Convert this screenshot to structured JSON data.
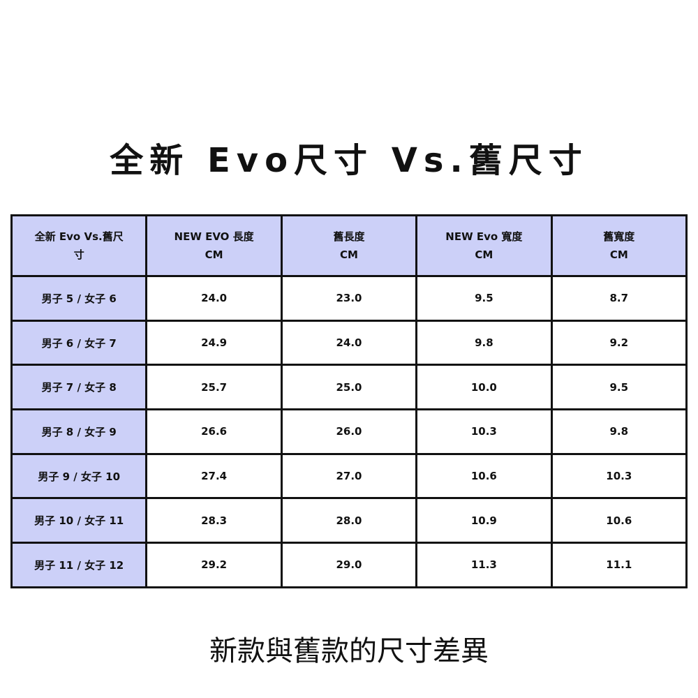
{
  "title": "全新 Evo尺寸 Vs.舊尺寸",
  "colors": {
    "header_fill": "#ccd0f8",
    "border": "#111111"
  },
  "table": {
    "headers": [
      {
        "line1": "全新 Evo Vs.舊尺",
        "line2": "寸"
      },
      {
        "line1": "NEW EVO 長度",
        "line2": "CM"
      },
      {
        "line1": "舊長度",
        "line2": "CM"
      },
      {
        "line1": "NEW Evo 寬度",
        "line2": "CM"
      },
      {
        "line1": "舊寬度",
        "line2": "CM"
      }
    ],
    "rows": [
      [
        "男子 5 / 女子 6",
        "24.0",
        "23.0",
        "9.5",
        "8.7"
      ],
      [
        "男子 6 / 女子 7",
        "24.9",
        "24.0",
        "9.8",
        "9.2"
      ],
      [
        "男子 7 / 女子 8",
        "25.7",
        "25.0",
        "10.0",
        "9.5"
      ],
      [
        "男子 8 / 女子 9",
        "26.6",
        "26.0",
        "10.3",
        "9.8"
      ],
      [
        "男子 9 / 女子 10",
        "27.4",
        "27.0",
        "10.6",
        "10.3"
      ],
      [
        "男子 10 / 女子 11",
        "28.3",
        "28.0",
        "10.9",
        "10.6"
      ],
      [
        "男子 11 / 女子 12",
        "29.2",
        "29.0",
        "11.3",
        "11.1"
      ]
    ]
  },
  "footer": "新款與舊款的尺寸差異"
}
